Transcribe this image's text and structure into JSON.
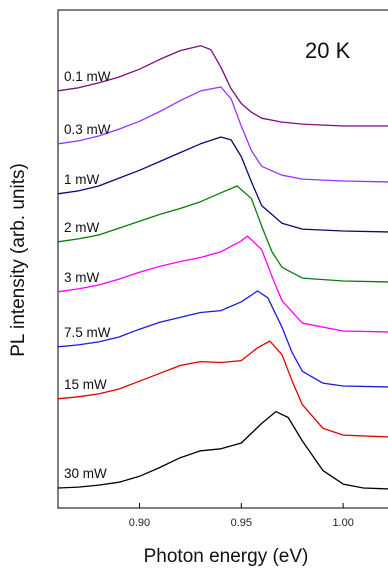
{
  "chart_data": {
    "type": "line",
    "annotation": "20 K",
    "xlabel": "Photon energy (eV)",
    "ylabel": "PL intensity (arb. units)",
    "xlim": [
      0.86,
      1.023
    ],
    "xticks": [
      0.9,
      0.95,
      1.0
    ],
    "xtick_labels": [
      "0.90",
      "0.95",
      "1.00"
    ],
    "y_ticks_shown": false,
    "grid": false,
    "series": [
      {
        "name": "0.1 mW",
        "color": "#7b0f7b",
        "points": [
          [
            0.86,
            0.38
          ],
          [
            0.87,
            0.41
          ],
          [
            0.88,
            0.46
          ],
          [
            0.89,
            0.52
          ],
          [
            0.9,
            0.6
          ],
          [
            0.91,
            0.7
          ],
          [
            0.92,
            0.79
          ],
          [
            0.93,
            0.84
          ],
          [
            0.935,
            0.8
          ],
          [
            0.94,
            0.62
          ],
          [
            0.945,
            0.4
          ],
          [
            0.95,
            0.25
          ],
          [
            0.955,
            0.16
          ],
          [
            0.96,
            0.1
          ],
          [
            0.97,
            0.06
          ],
          [
            0.98,
            0.04
          ],
          [
            1.0,
            0.02
          ],
          [
            1.023,
            0.02
          ]
        ]
      },
      {
        "name": "0.3 mW",
        "color": "#9933ff",
        "points": [
          [
            0.86,
            0.4
          ],
          [
            0.87,
            0.43
          ],
          [
            0.88,
            0.48
          ],
          [
            0.89,
            0.55
          ],
          [
            0.9,
            0.63
          ],
          [
            0.91,
            0.73
          ],
          [
            0.92,
            0.84
          ],
          [
            0.93,
            0.94
          ],
          [
            0.94,
            0.98
          ],
          [
            0.945,
            0.86
          ],
          [
            0.95,
            0.58
          ],
          [
            0.955,
            0.33
          ],
          [
            0.96,
            0.17
          ],
          [
            0.97,
            0.08
          ],
          [
            0.98,
            0.04
          ],
          [
            1.0,
            0.02
          ],
          [
            1.023,
            0.01
          ]
        ]
      },
      {
        "name": "1 mW",
        "color": "#0a0a6e",
        "points": [
          [
            0.86,
            0.4
          ],
          [
            0.87,
            0.43
          ],
          [
            0.88,
            0.48
          ],
          [
            0.89,
            0.56
          ],
          [
            0.9,
            0.64
          ],
          [
            0.91,
            0.73
          ],
          [
            0.92,
            0.82
          ],
          [
            0.93,
            0.91
          ],
          [
            0.94,
            0.98
          ],
          [
            0.945,
            0.95
          ],
          [
            0.95,
            0.78
          ],
          [
            0.955,
            0.52
          ],
          [
            0.96,
            0.28
          ],
          [
            0.97,
            0.1
          ],
          [
            0.98,
            0.04
          ],
          [
            1.0,
            0.02
          ],
          [
            1.023,
            0.01
          ]
        ]
      },
      {
        "name": "2 mW",
        "color": "#0a7a0a",
        "points": [
          [
            0.86,
            0.42
          ],
          [
            0.87,
            0.45
          ],
          [
            0.88,
            0.49
          ],
          [
            0.89,
            0.56
          ],
          [
            0.9,
            0.63
          ],
          [
            0.91,
            0.7
          ],
          [
            0.92,
            0.76
          ],
          [
            0.93,
            0.83
          ],
          [
            0.94,
            0.92
          ],
          [
            0.948,
            0.99
          ],
          [
            0.955,
            0.86
          ],
          [
            0.96,
            0.58
          ],
          [
            0.965,
            0.32
          ],
          [
            0.97,
            0.16
          ],
          [
            0.98,
            0.05
          ],
          [
            1.0,
            0.02
          ],
          [
            1.023,
            0.01
          ]
        ]
      },
      {
        "name": "3 mW",
        "color": "#ff00ff",
        "points": [
          [
            0.86,
            0.42
          ],
          [
            0.87,
            0.45
          ],
          [
            0.88,
            0.49
          ],
          [
            0.89,
            0.55
          ],
          [
            0.9,
            0.62
          ],
          [
            0.91,
            0.68
          ],
          [
            0.92,
            0.73
          ],
          [
            0.93,
            0.77
          ],
          [
            0.94,
            0.83
          ],
          [
            0.95,
            0.94
          ],
          [
            0.953,
            0.99
          ],
          [
            0.96,
            0.85
          ],
          [
            0.965,
            0.58
          ],
          [
            0.97,
            0.33
          ],
          [
            0.98,
            0.1
          ],
          [
            1.0,
            0.02
          ],
          [
            1.023,
            0.01
          ]
        ]
      },
      {
        "name": "7.5 mW",
        "color": "#1a1ae6",
        "points": [
          [
            0.86,
            0.42
          ],
          [
            0.87,
            0.44
          ],
          [
            0.88,
            0.47
          ],
          [
            0.89,
            0.52
          ],
          [
            0.9,
            0.6
          ],
          [
            0.91,
            0.67
          ],
          [
            0.92,
            0.72
          ],
          [
            0.93,
            0.77
          ],
          [
            0.94,
            0.79
          ],
          [
            0.95,
            0.88
          ],
          [
            0.958,
            0.99
          ],
          [
            0.963,
            0.92
          ],
          [
            0.97,
            0.62
          ],
          [
            0.975,
            0.36
          ],
          [
            0.98,
            0.17
          ],
          [
            0.99,
            0.05
          ],
          [
            1.0,
            0.02
          ],
          [
            1.023,
            0.01
          ]
        ]
      },
      {
        "name": "15 mW",
        "color": "#e00000",
        "points": [
          [
            0.86,
            0.4
          ],
          [
            0.87,
            0.42
          ],
          [
            0.88,
            0.45
          ],
          [
            0.89,
            0.5
          ],
          [
            0.9,
            0.58
          ],
          [
            0.91,
            0.66
          ],
          [
            0.92,
            0.74
          ],
          [
            0.93,
            0.78
          ],
          [
            0.94,
            0.77
          ],
          [
            0.95,
            0.79
          ],
          [
            0.958,
            0.92
          ],
          [
            0.964,
            0.99
          ],
          [
            0.97,
            0.85
          ],
          [
            0.975,
            0.58
          ],
          [
            0.98,
            0.34
          ],
          [
            0.99,
            0.1
          ],
          [
            1.0,
            0.03
          ],
          [
            1.023,
            0.01
          ]
        ]
      },
      {
        "name": "30 mW",
        "color": "#000000",
        "points": [
          [
            0.86,
            0.02
          ],
          [
            0.87,
            0.03
          ],
          [
            0.88,
            0.05
          ],
          [
            0.89,
            0.08
          ],
          [
            0.9,
            0.14
          ],
          [
            0.91,
            0.23
          ],
          [
            0.92,
            0.33
          ],
          [
            0.93,
            0.4
          ],
          [
            0.94,
            0.42
          ],
          [
            0.95,
            0.48
          ],
          [
            0.96,
            0.68
          ],
          [
            0.967,
            0.8
          ],
          [
            0.973,
            0.74
          ],
          [
            0.98,
            0.5
          ],
          [
            0.99,
            0.2
          ],
          [
            1.0,
            0.06
          ],
          [
            1.01,
            0.02
          ],
          [
            1.023,
            0.01
          ]
        ]
      }
    ]
  }
}
